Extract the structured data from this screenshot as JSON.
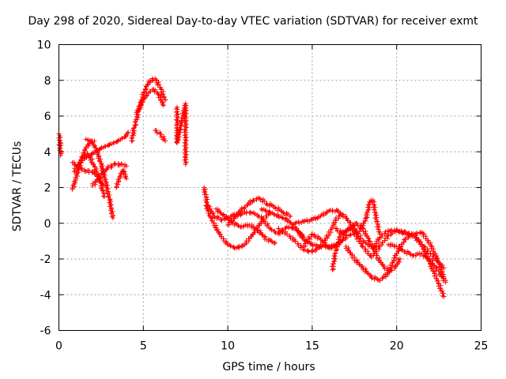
{
  "chart_data": {
    "type": "scatter",
    "title": "Day 298 of 2020, Sidereal Day-to-day VTEC variation (SDTVAR) for receiver exmt",
    "xlabel": "GPS time / hours",
    "ylabel": "SDTVAR / TECUs",
    "xlim": [
      0,
      25
    ],
    "ylim": [
      -6,
      10
    ],
    "x_ticks": [
      0,
      5,
      10,
      15,
      20,
      25
    ],
    "y_ticks": [
      -6,
      -4,
      -2,
      0,
      2,
      4,
      6,
      8,
      10
    ],
    "grid": true,
    "marker": "+",
    "color": "#ff0000",
    "series": [
      {
        "name": "t0",
        "x": [
          0.0,
          0.1
        ],
        "y": [
          4.4,
          4.5
        ]
      },
      {
        "name": "t0b",
        "x": [
          0.0,
          0.05,
          0.1
        ],
        "y": [
          5.0,
          4.9,
          3.8
        ]
      },
      {
        "name": "t1",
        "x": [
          0.8,
          1.0,
          1.3,
          1.6,
          1.9,
          2.1
        ],
        "y": [
          1.9,
          2.5,
          3.5,
          4.2,
          4.6,
          4.6
        ]
      },
      {
        "name": "t2",
        "x": [
          0.8,
          1.2,
          1.6,
          2.0,
          2.4,
          2.6
        ],
        "y": [
          3.4,
          3.1,
          2.9,
          2.9,
          2.5,
          2.1
        ]
      },
      {
        "name": "t3",
        "x": [
          1.6,
          1.9,
          2.2,
          2.5,
          2.8,
          3.0,
          3.2
        ],
        "y": [
          4.7,
          4.6,
          4.2,
          3.3,
          2.2,
          1.3,
          0.3
        ]
      },
      {
        "name": "t4",
        "x": [
          0.9,
          1.3,
          1.7,
          2.0,
          2.4,
          2.7
        ],
        "y": [
          2.9,
          3.5,
          3.9,
          3.4,
          2.5,
          1.5
        ]
      },
      {
        "name": "t5",
        "x": [
          1.5,
          2.0,
          2.5,
          3.0,
          3.5,
          4.0,
          4.1
        ],
        "y": [
          3.6,
          3.9,
          4.2,
          4.4,
          4.6,
          4.9,
          5.1
        ]
      },
      {
        "name": "t6",
        "x": [
          2.0,
          2.5,
          2.9,
          3.3,
          3.7,
          4.0
        ],
        "y": [
          2.1,
          2.7,
          3.1,
          3.3,
          3.3,
          3.2
        ]
      },
      {
        "name": "t7",
        "x": [
          3.4,
          3.6,
          3.8,
          4.0
        ],
        "y": [
          2.0,
          2.6,
          3.0,
          2.5
        ]
      },
      {
        "name": "t8",
        "x": [
          4.3,
          4.5,
          4.8,
          5.1,
          5.4,
          5.7,
          6.0,
          6.3
        ],
        "y": [
          4.6,
          5.5,
          6.6,
          7.5,
          8.0,
          8.1,
          7.6,
          6.9
        ]
      },
      {
        "name": "t9",
        "x": [
          4.6,
          5.0,
          5.3,
          5.6,
          5.9,
          6.2
        ],
        "y": [
          6.2,
          6.9,
          7.3,
          7.5,
          7.2,
          6.6
        ]
      },
      {
        "name": "t10",
        "x": [
          5.7,
          6.0,
          6.3
        ],
        "y": [
          5.2,
          5.0,
          4.6
        ]
      },
      {
        "name": "t11",
        "x": [
          7.0,
          7.0,
          7.0,
          7.5,
          7.5,
          7.5
        ],
        "y": [
          6.5,
          5.6,
          4.5,
          6.7,
          5.2,
          3.3
        ]
      },
      {
        "name": "t12",
        "x": [
          8.6,
          8.8,
          9.2,
          9.6,
          10.0,
          10.5,
          11.0,
          11.5,
          11.9,
          12.3,
          12.8,
          13.3,
          13.7
        ],
        "y": [
          2.0,
          1.0,
          0.4,
          0.2,
          0.3,
          0.5,
          0.9,
          1.3,
          1.4,
          1.1,
          0.9,
          0.6,
          0.4
        ]
      },
      {
        "name": "t13",
        "x": [
          8.7,
          9.0,
          9.5,
          10.0,
          10.5,
          11.0,
          11.5,
          12.0,
          12.5
        ],
        "y": [
          1.0,
          0.3,
          -0.6,
          -1.2,
          -1.4,
          -1.2,
          -0.6,
          0.1,
          0.6
        ]
      },
      {
        "name": "t14",
        "x": [
          9.3,
          9.8,
          10.3,
          10.8,
          11.3,
          11.8,
          12.3,
          12.8
        ],
        "y": [
          0.8,
          0.4,
          0.0,
          -0.2,
          -0.1,
          -0.4,
          -0.9,
          -1.1
        ]
      },
      {
        "name": "t15",
        "x": [
          10.0,
          10.5,
          11.0,
          11.5,
          12.0,
          12.5,
          13.0,
          13.5,
          14.0,
          14.5
        ],
        "y": [
          -0.1,
          0.4,
          0.6,
          0.6,
          0.3,
          -0.3,
          -0.6,
          -0.2,
          -0.3,
          -0.8
        ]
      },
      {
        "name": "t16",
        "x": [
          12.0,
          12.5,
          13.0,
          13.5,
          14.0,
          14.5,
          15.0,
          15.5,
          16.0,
          16.5
        ],
        "y": [
          0.8,
          0.6,
          0.4,
          0.2,
          -0.2,
          -0.9,
          -1.2,
          -1.3,
          -1.3,
          -1.2
        ]
      },
      {
        "name": "t17",
        "x": [
          13.0,
          13.5,
          14.0,
          14.5,
          15.0,
          15.5,
          16.0,
          16.4,
          16.7
        ],
        "y": [
          -0.3,
          -0.6,
          -1.0,
          -1.5,
          -1.6,
          -1.3,
          -0.6,
          0.2,
          0.5
        ]
      },
      {
        "name": "t18",
        "x": [
          14.0,
          14.5,
          15.0,
          15.5,
          16.0,
          16.5,
          17.0,
          17.5,
          18.0,
          18.5,
          18.8
        ],
        "y": [
          0.0,
          0.1,
          0.2,
          0.4,
          0.7,
          0.7,
          0.3,
          -0.3,
          -1.0,
          -1.3,
          -1.3
        ]
      },
      {
        "name": "t19",
        "x": [
          14.5,
          15.0,
          15.5,
          16.0,
          16.5,
          17.0
        ],
        "y": [
          -1.3,
          -0.6,
          -0.9,
          -1.4,
          -1.2,
          -0.8
        ]
      },
      {
        "name": "t20",
        "x": [
          16.2,
          16.4,
          16.7,
          17.0,
          17.3,
          17.6,
          17.9,
          18.2,
          18.4,
          18.6,
          18.8,
          19.0
        ],
        "y": [
          -2.6,
          -1.5,
          -0.6,
          -0.4,
          -0.3,
          -0.6,
          -0.3,
          0.3,
          1.2,
          1.3,
          0.2,
          -0.6
        ]
      },
      {
        "name": "t21",
        "x": [
          16.4,
          16.8,
          17.2,
          17.6,
          18.0,
          18.4,
          18.8,
          19.2,
          19.6,
          19.9,
          20.2
        ],
        "y": [
          -0.3,
          -0.6,
          -0.3,
          0.0,
          -0.3,
          -1.0,
          -1.8,
          -2.4,
          -2.7,
          -2.5,
          -2.0
        ]
      },
      {
        "name": "t22",
        "x": [
          16.5,
          17.0,
          17.5,
          18.0,
          18.5,
          19.0,
          19.5,
          20.0,
          20.5,
          21.0,
          21.5,
          22.0,
          22.5,
          22.8
        ],
        "y": [
          -1.2,
          -0.7,
          -0.6,
          -1.3,
          -1.9,
          -1.3,
          -0.7,
          -0.4,
          -0.5,
          -0.7,
          -1.2,
          -1.7,
          -2.2,
          -2.5
        ]
      },
      {
        "name": "t23",
        "x": [
          17.0,
          17.5,
          18.0,
          18.5,
          19.0,
          19.5,
          20.0,
          20.5,
          21.0,
          21.5,
          22.0,
          22.5,
          22.8
        ],
        "y": [
          -1.3,
          -2.0,
          -2.5,
          -3.0,
          -3.2,
          -2.8,
          -1.7,
          -0.9,
          -0.6,
          -1.2,
          -2.3,
          -3.4,
          -4.1
        ]
      },
      {
        "name": "t24",
        "x": [
          18.6,
          19.0,
          19.5,
          20.0,
          20.5,
          21.0,
          21.5,
          22.0,
          22.5,
          22.8
        ],
        "y": [
          -1.4,
          -0.8,
          -0.4,
          -0.4,
          -0.6,
          -0.6,
          -0.5,
          -1.2,
          -2.2,
          -3.1
        ]
      },
      {
        "name": "t25",
        "x": [
          19.5,
          20.0,
          20.5,
          21.0,
          21.5,
          22.0,
          22.5,
          22.9
        ],
        "y": [
          -1.2,
          -1.3,
          -1.6,
          -1.8,
          -1.7,
          -2.1,
          -2.7,
          -3.3
        ]
      }
    ]
  }
}
